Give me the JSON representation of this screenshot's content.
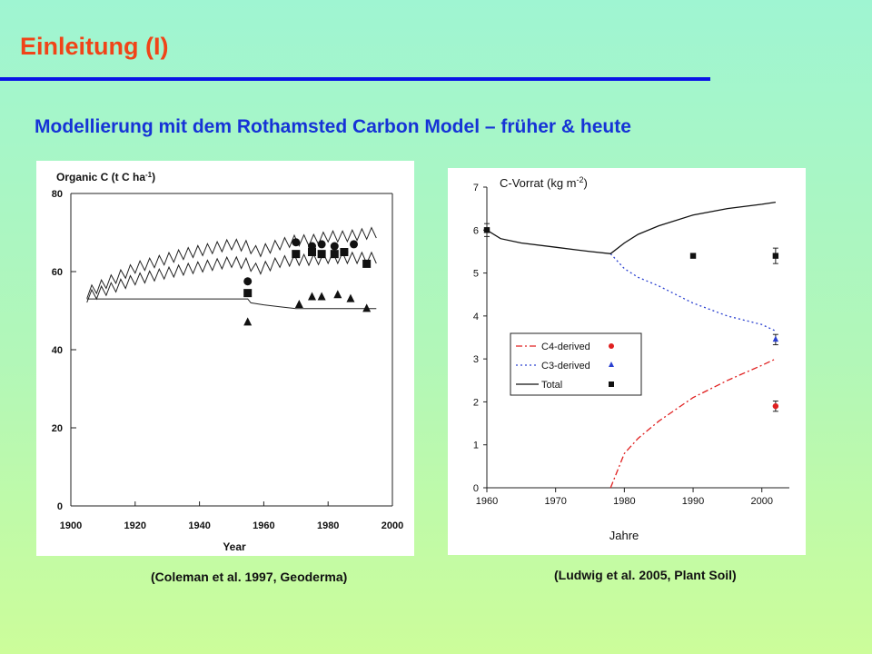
{
  "slide": {
    "title": "Einleitung (I)",
    "subtitle": "Modellierung mit dem Rothamsted Carbon Model – früher & heute",
    "citation_left": "(Coleman et al. 1997, Geoderma)",
    "citation_right": "(Ludwig et al. 2005, Plant Soil)"
  },
  "colors": {
    "title": "#f04418",
    "rule": "#0a14e6",
    "subtitle": "#1633d6",
    "c4_series": "#e02020",
    "c3_series": "#2a40d0"
  },
  "chart_data": [
    {
      "type": "line",
      "ylabel_prefix": "Organic C (t C ha",
      "ylabel_sup": "-1",
      "ylabel_suffix": ")",
      "xlabel": "Year",
      "xlim": [
        1900,
        2000
      ],
      "ylim": [
        0,
        80
      ],
      "xticks": [
        1900,
        1920,
        1940,
        1960,
        1980,
        2000
      ],
      "yticks": [
        0,
        20,
        40,
        60,
        80
      ],
      "grid": false,
      "series": [
        {
          "marker": "line",
          "style": "zigzag",
          "x": [
            1905,
            1920,
            1935,
            1950,
            1955,
            1958,
            1965,
            1970,
            1975,
            1980,
            1985,
            1990,
            1995
          ],
          "y": [
            54.5,
            61,
            64.5,
            67,
            66.5,
            65,
            67,
            68,
            68,
            69,
            69,
            69.5,
            70
          ]
        },
        {
          "marker": "line",
          "style": "zigzag",
          "x": [
            1905,
            1920,
            1935,
            1950,
            1955,
            1958,
            1965,
            1970,
            1975,
            1980,
            1985,
            1990,
            1995
          ],
          "y": [
            53.5,
            58,
            60.5,
            62.5,
            62,
            60.5,
            62.5,
            63,
            63,
            63.5,
            63.5,
            63.5,
            63.5
          ]
        },
        {
          "marker": "line",
          "style": "plain",
          "x": [
            1905,
            1955,
            1956,
            1960,
            1965,
            1970,
            1975,
            1980,
            1985,
            1990,
            1995
          ],
          "y": [
            53,
            53,
            52,
            51.5,
            51,
            50.5,
            50.5,
            50.5,
            50.5,
            50.5,
            50.5
          ]
        },
        {
          "marker": "circle",
          "x": [
            1955,
            1970,
            1975,
            1978,
            1982,
            1985,
            1988
          ],
          "y": [
            57.5,
            67.5,
            66.5,
            67,
            66.5,
            65,
            67
          ]
        },
        {
          "marker": "square",
          "x": [
            1955,
            1970,
            1975,
            1978,
            1982,
            1985,
            1992
          ],
          "y": [
            54.5,
            64.5,
            65,
            64.5,
            64.5,
            65,
            62
          ]
        },
        {
          "marker": "triangle",
          "x": [
            1955,
            1971,
            1975,
            1978,
            1983,
            1987,
            1992
          ],
          "y": [
            47,
            51.5,
            53.5,
            53.5,
            54,
            53,
            50.5
          ]
        }
      ]
    },
    {
      "type": "line",
      "ylabel_prefix": "C-Vorrat (kg m",
      "ylabel_sup": "-2",
      "ylabel_suffix": ")",
      "xlabel": "Jahre",
      "xlim": [
        1960,
        2004
      ],
      "ylim": [
        0,
        7
      ],
      "xticks": [
        1960,
        1970,
        1980,
        1990,
        2000
      ],
      "yticks": [
        0,
        1,
        2,
        3,
        4,
        5,
        6,
        7
      ],
      "grid": false,
      "legend_position": "center-left",
      "series": [
        {
          "name": "C4-derived",
          "line": "dash-dot",
          "marker": "circle",
          "color": "#e02020",
          "model_x": [
            1978,
            1979,
            1980,
            1982,
            1985,
            1990,
            1995,
            2000,
            2002
          ],
          "model_y": [
            0,
            0.4,
            0.8,
            1.15,
            1.55,
            2.1,
            2.5,
            2.85,
            3.0
          ],
          "obs_x": [
            2002
          ],
          "obs_y": [
            1.9
          ],
          "obs_err": [
            0.12
          ]
        },
        {
          "name": "C3-derived",
          "line": "dotted",
          "marker": "triangle",
          "color": "#2a40d0",
          "model_x": [
            1978,
            1980,
            1982,
            1985,
            1990,
            1995,
            2000,
            2002
          ],
          "model_y": [
            5.45,
            5.1,
            4.9,
            4.7,
            4.3,
            4.0,
            3.8,
            3.65
          ],
          "obs_x": [
            2002
          ],
          "obs_y": [
            3.45
          ],
          "obs_err": [
            0.12
          ]
        },
        {
          "name": "Total",
          "line": "solid",
          "marker": "square",
          "color": "#111111",
          "model_x": [
            1960,
            1962,
            1965,
            1970,
            1975,
            1978,
            1980,
            1982,
            1985,
            1990,
            1995,
            2000,
            2002
          ],
          "model_y": [
            6.0,
            5.8,
            5.7,
            5.6,
            5.5,
            5.45,
            5.7,
            5.9,
            6.1,
            6.35,
            6.5,
            6.6,
            6.65
          ],
          "obs_x": [
            1960,
            1990,
            2002
          ],
          "obs_y": [
            6.0,
            5.4,
            5.4
          ],
          "obs_err": [
            0.15,
            0,
            0.18
          ]
        }
      ]
    }
  ]
}
